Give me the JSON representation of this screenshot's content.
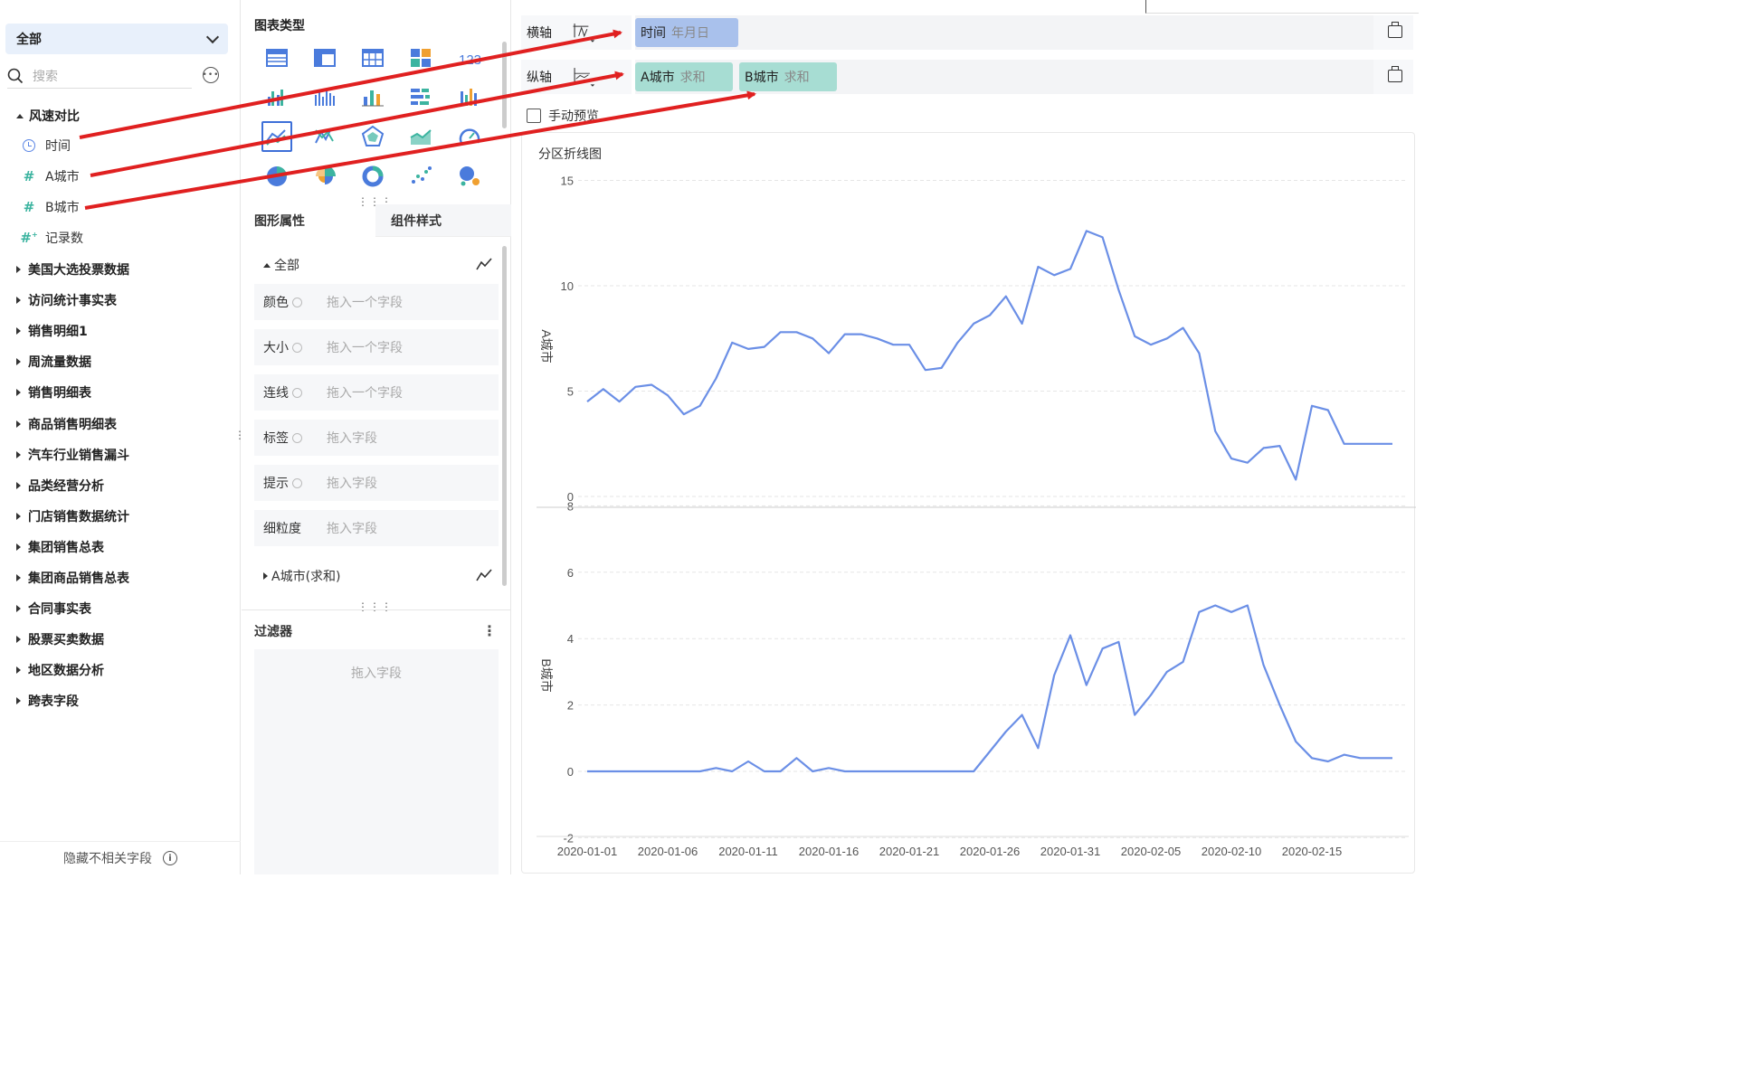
{
  "left_panel": {
    "dataset_select": "全部",
    "search_placeholder": "搜索",
    "open_group": "风速对比",
    "fields": [
      {
        "label": "时间",
        "icon": "clock-icon"
      },
      {
        "label": "A城市",
        "icon": "hash-icon"
      },
      {
        "label": "B城市",
        "icon": "hash-icon"
      },
      {
        "label": "记录数",
        "icon": "hash-plus-icon"
      }
    ],
    "groups": [
      "美国大选投票数据",
      "访问统计事实表",
      "销售明细1",
      "周流量数据",
      "销售明细表",
      "商品销售明细表",
      "汽车行业销售漏斗",
      "品类经营分析",
      "门店销售数据统计",
      "集团销售总表",
      "集团商品销售总表",
      "合同事实表",
      "股票买卖数据",
      "地区数据分析",
      "跨表字段"
    ],
    "hide_fields_label": "隐藏不相关字段"
  },
  "middle_panel": {
    "chart_type_title": "图表类型",
    "chart_type_icons": [
      "table-icon",
      "crosstab-icon",
      "detail-table-icon",
      "dashboard-icon",
      "kpi-number-icon",
      "grouped-bar-icon",
      "multi-bar-icon",
      "bar-icon",
      "bar-horizontal-icon",
      "waterfall-icon",
      "area-line-icon",
      "scatter-line-icon",
      "radar-icon",
      "area-icon",
      "gauge-icon",
      "pie-icon",
      "rose-pie-icon",
      "donut-icon",
      "scatter-icon",
      "bubble-icon"
    ],
    "kpi_text": "123",
    "tabs": {
      "graph_props": "图形属性",
      "component_style": "组件样式"
    },
    "all_label": "全部",
    "props": [
      {
        "label": "颜色",
        "placeholder": "拖入一个字段"
      },
      {
        "label": "大小",
        "placeholder": "拖入一个字段"
      },
      {
        "label": "连线",
        "placeholder": "拖入一个字段"
      },
      {
        "label": "标签",
        "placeholder": "拖入字段"
      },
      {
        "label": "提示",
        "placeholder": "拖入字段"
      },
      {
        "label": "细粒度",
        "placeholder": "拖入字段"
      }
    ],
    "series_sub": "A城市(求和)",
    "filter_title": "过滤器",
    "filter_more": "⋮",
    "filter_placeholder": "拖入字段"
  },
  "axes": {
    "x_label": "横轴",
    "y_label": "纵轴",
    "x_pill": {
      "field": "时间",
      "agg": "年月日"
    },
    "y_pills": [
      {
        "field": "A城市",
        "agg": "求和"
      },
      {
        "field": "B城市",
        "agg": "求和"
      }
    ],
    "manual_preview": "手动预览"
  },
  "colors": {
    "line": "#6b8fe6",
    "arrow": "#e02020",
    "pill_blue": "#a9c1ec",
    "pill_teal": "#a7ddd3"
  },
  "chart_data": {
    "type": "line",
    "title": "分区折线图",
    "x_tick_labels": [
      "2020-01-01",
      "2020-01-06",
      "2020-01-11",
      "2020-01-16",
      "2020-01-21",
      "2020-01-26",
      "2020-01-31",
      "2020-02-05",
      "2020-02-10",
      "2020-02-15"
    ],
    "x": [
      "2020-01-01",
      "2020-01-02",
      "2020-01-03",
      "2020-01-04",
      "2020-01-05",
      "2020-01-06",
      "2020-01-07",
      "2020-01-08",
      "2020-01-09",
      "2020-01-10",
      "2020-01-11",
      "2020-01-12",
      "2020-01-13",
      "2020-01-14",
      "2020-01-15",
      "2020-01-16",
      "2020-01-17",
      "2020-01-18",
      "2020-01-19",
      "2020-01-20",
      "2020-01-21",
      "2020-01-22",
      "2020-01-23",
      "2020-01-24",
      "2020-01-25",
      "2020-01-26",
      "2020-01-27",
      "2020-01-28",
      "2020-01-29",
      "2020-01-30",
      "2020-01-31",
      "2020-02-01",
      "2020-02-02",
      "2020-02-03",
      "2020-02-04",
      "2020-02-05",
      "2020-02-06",
      "2020-02-07",
      "2020-02-08",
      "2020-02-09",
      "2020-02-10",
      "2020-02-11",
      "2020-02-12",
      "2020-02-13",
      "2020-02-14",
      "2020-02-15",
      "2020-02-16",
      "2020-02-17",
      "2020-02-18",
      "2020-02-19",
      "2020-02-20"
    ],
    "panels": [
      {
        "ylabel": "A城市",
        "yticks": [
          0,
          5,
          10,
          15
        ],
        "ylim": [
          0,
          15
        ],
        "values": [
          4.5,
          5.1,
          4.5,
          5.2,
          5.3,
          4.8,
          3.9,
          4.3,
          5.6,
          7.3,
          7.0,
          7.1,
          7.8,
          7.8,
          7.5,
          6.8,
          7.7,
          7.7,
          7.5,
          7.2,
          7.2,
          6.0,
          6.1,
          7.3,
          8.2,
          8.6,
          9.5,
          8.2,
          10.9,
          10.5,
          10.8,
          12.6,
          12.3,
          9.8,
          7.6,
          7.2,
          7.5,
          8.0,
          6.8,
          3.1,
          1.8,
          1.6,
          2.3,
          2.4,
          0.8,
          4.3,
          4.1,
          2.5,
          2.5,
          2.5,
          2.5
        ]
      },
      {
        "ylabel": "B城市",
        "yticks": [
          -2,
          0,
          2,
          4,
          6,
          8
        ],
        "ylim": [
          -2.3,
          8
        ],
        "values": [
          0,
          0,
          0,
          0,
          0,
          0,
          0,
          0,
          0.1,
          0,
          0.3,
          0,
          0,
          0.4,
          0,
          0.1,
          0,
          0,
          0,
          0,
          0,
          0,
          0,
          0,
          0,
          0.6,
          1.2,
          1.7,
          0.7,
          2.9,
          4.1,
          2.6,
          3.7,
          3.9,
          1.7,
          2.3,
          3.0,
          3.3,
          4.8,
          5.0,
          4.8,
          5.0,
          3.2,
          2.0,
          0.9,
          0.4,
          0.3,
          0.5,
          0.4,
          0.4,
          0.4
        ]
      }
    ]
  }
}
